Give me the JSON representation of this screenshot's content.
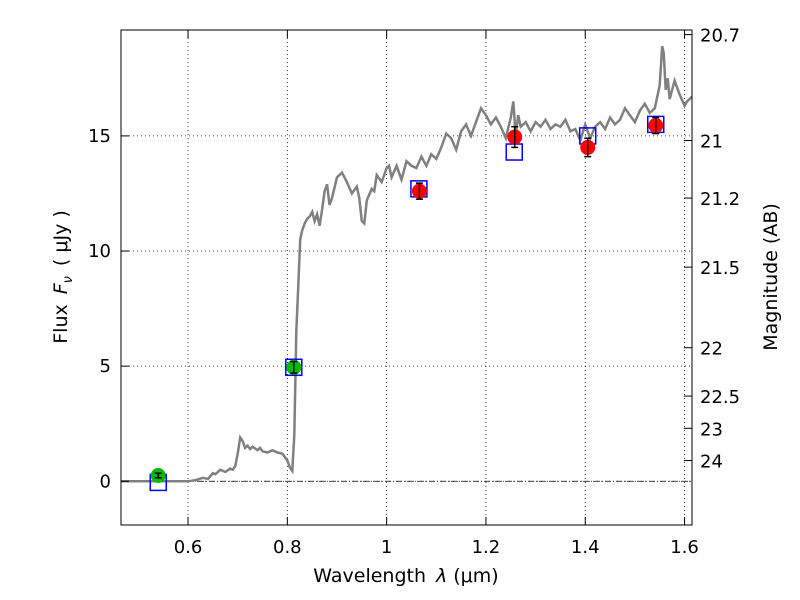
{
  "chart_data": {
    "type": "scatter",
    "x_ticks": [
      0.6,
      0.8,
      1,
      1.2,
      1.4,
      1.6
    ],
    "x_tick_labels": [
      "0.6",
      "0.8",
      "1",
      "1.2",
      "1.4",
      "1.6"
    ],
    "y_ticks": [
      0,
      5,
      10,
      15
    ],
    "y_tick_labels": [
      "0",
      "5",
      "10",
      "15"
    ],
    "right_ticks": [
      {
        "label": "20.7",
        "flux": 19.4
      },
      {
        "label": "21",
        "flux": 14.8
      },
      {
        "label": "21.2",
        "flux": 12.3
      },
      {
        "label": "21.5",
        "flux": 9.3
      },
      {
        "label": "22",
        "flux": 5.8
      },
      {
        "label": "22.5",
        "flux": 3.7
      },
      {
        "label": "23",
        "flux": 2.3
      },
      {
        "label": "24",
        "flux": 0.9
      }
    ],
    "xlim": [
      0.465,
      1.615
    ],
    "ylim": [
      -1.9,
      19.6
    ],
    "xlabel_main": "Wavelength",
    "xlabel_symbol": "λ",
    "xlabel_unit": "(μm)",
    "ylabel_left_main": "Flux",
    "ylabel_left_symbol": "F",
    "ylabel_left_sub": "ν",
    "ylabel_left_unit": "(  μJy )",
    "ylabel_right": "Magnitude (AB)",
    "grid": true,
    "zero_line": 0,
    "colors": {
      "model": "#808080",
      "green_points": "#00bb00",
      "red_points": "#ff0000",
      "model_boxes": "#0000ff",
      "error_bars": "#000000"
    },
    "model_boxes": [
      {
        "x": 0.54,
        "y": -0.05
      },
      {
        "x": 0.813,
        "y": 4.95
      },
      {
        "x": 1.065,
        "y": 12.7
      },
      {
        "x": 1.257,
        "y": 14.3
      },
      {
        "x": 1.405,
        "y": 15.0
      },
      {
        "x": 1.542,
        "y": 15.5
      }
    ],
    "green_points": [
      {
        "x": 0.54,
        "y": 0.25,
        "err": 0.1
      },
      {
        "x": 0.813,
        "y": 4.95,
        "err": 0.25
      }
    ],
    "red_points": [
      {
        "x": 1.066,
        "y": 12.6,
        "err": 0.35
      },
      {
        "x": 1.258,
        "y": 14.95,
        "err": 0.45
      },
      {
        "x": 1.405,
        "y": 14.5,
        "err": 0.4
      },
      {
        "x": 1.542,
        "y": 15.45,
        "err": 0.35
      }
    ],
    "model_x": [
      0.465,
      0.52,
      0.58,
      0.6,
      0.615,
      0.63,
      0.64,
      0.65,
      0.655,
      0.665,
      0.675,
      0.685,
      0.69,
      0.695,
      0.7,
      0.705,
      0.71,
      0.715,
      0.72,
      0.725,
      0.73,
      0.74,
      0.745,
      0.75,
      0.76,
      0.77,
      0.78,
      0.79,
      0.8,
      0.805,
      0.81,
      0.814,
      0.818,
      0.822,
      0.826,
      0.83,
      0.835,
      0.84,
      0.845,
      0.85,
      0.855,
      0.86,
      0.865,
      0.87,
      0.875,
      0.88,
      0.885,
      0.89,
      0.9,
      0.91,
      0.92,
      0.93,
      0.94,
      0.945,
      0.95,
      0.955,
      0.96,
      0.97,
      0.975,
      0.98,
      0.99,
      1.0,
      1.005,
      1.01,
      1.02,
      1.03,
      1.04,
      1.05,
      1.06,
      1.07,
      1.08,
      1.09,
      1.1,
      1.11,
      1.12,
      1.13,
      1.14,
      1.15,
      1.16,
      1.17,
      1.18,
      1.19,
      1.2,
      1.21,
      1.22,
      1.23,
      1.24,
      1.25,
      1.255,
      1.26,
      1.265,
      1.27,
      1.28,
      1.29,
      1.3,
      1.31,
      1.32,
      1.33,
      1.34,
      1.35,
      1.36,
      1.37,
      1.38,
      1.39,
      1.4,
      1.41,
      1.42,
      1.43,
      1.44,
      1.45,
      1.46,
      1.47,
      1.48,
      1.49,
      1.5,
      1.51,
      1.52,
      1.53,
      1.54,
      1.55,
      1.555,
      1.558,
      1.562,
      1.566,
      1.57,
      1.58,
      1.59,
      1.6,
      1.605,
      1.615
    ],
    "model_y": [
      0.0,
      0.0,
      0.0,
      0.0,
      0.05,
      0.15,
      0.1,
      0.35,
      0.3,
      0.5,
      0.4,
      0.55,
      0.5,
      0.65,
      1.2,
      1.9,
      1.75,
      1.45,
      1.55,
      1.4,
      1.5,
      1.35,
      1.45,
      1.3,
      1.25,
      1.35,
      1.25,
      1.2,
      0.9,
      0.6,
      0.45,
      2.0,
      6.5,
      8.5,
      10.5,
      10.9,
      11.2,
      11.4,
      11.5,
      11.7,
      11.3,
      11.6,
      11.1,
      11.8,
      12.6,
      12.9,
      12.0,
      12.3,
      13.2,
      13.4,
      13.0,
      12.5,
      12.8,
      12.3,
      11.3,
      11.2,
      12.2,
      12.7,
      12.6,
      13.3,
      13.0,
      13.6,
      13.7,
      13.2,
      13.7,
      13.1,
      13.9,
      13.7,
      13.6,
      14.1,
      13.7,
      14.2,
      14.0,
      14.5,
      15.1,
      14.9,
      14.4,
      15.2,
      15.5,
      15.0,
      15.6,
      16.2,
      15.9,
      15.5,
      15.8,
      15.4,
      14.9,
      15.8,
      16.5,
      15.0,
      15.9,
      15.4,
      15.6,
      15.2,
      15.6,
      15.4,
      15.7,
      15.3,
      15.5,
      15.4,
      15.7,
      15.2,
      15.3,
      14.8,
      15.5,
      14.9,
      15.4,
      15.6,
      15.3,
      15.8,
      15.5,
      15.7,
      16.2,
      15.9,
      15.6,
      16.1,
      16.4,
      16.0,
      16.2,
      17.2,
      18.9,
      18.6,
      17.0,
      17.5,
      16.6,
      17.4,
      16.8,
      16.3,
      16.5,
      16.7
    ]
  }
}
